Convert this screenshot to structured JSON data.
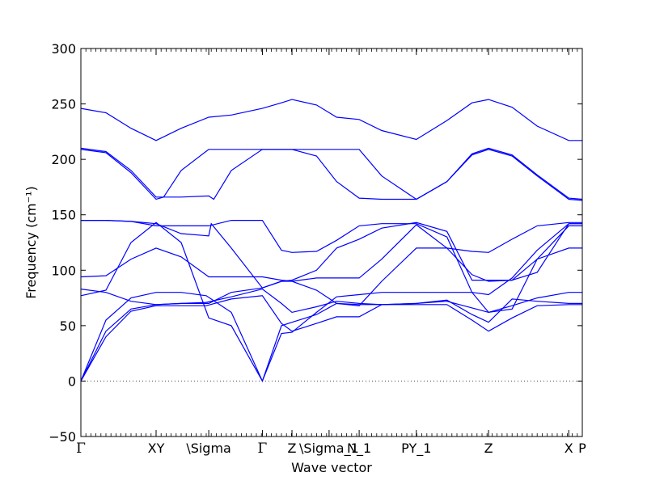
{
  "chart_data": {
    "type": "line",
    "title": "",
    "xlabel": "Wave vector",
    "ylabel": "Frequency (cm⁻¹)",
    "ylim": [
      -50,
      300
    ],
    "yticks": [
      -50,
      0,
      50,
      100,
      150,
      200,
      250,
      300
    ],
    "xlim": [
      0,
      1
    ],
    "grid": false,
    "legend": "none",
    "line_color": "#0000ff",
    "zero_line_color": "#444444",
    "high_symmetry_points": [
      {
        "label": "Γ",
        "x": 0.0,
        "greek": true
      },
      {
        "label": "XY",
        "x": 0.15,
        "greek": false
      },
      {
        "label": "\\Sigma",
        "x": 0.255,
        "greek": false
      },
      {
        "label": "Γ",
        "x": 0.362,
        "greek": true
      },
      {
        "label": "Z",
        "x": 0.421,
        "greek": false
      },
      {
        "label": "\\Sigma_1",
        "x": 0.495,
        "greek": false
      },
      {
        "label": "N_1",
        "x": 0.555,
        "greek": false
      },
      {
        "label": "PY_1",
        "x": 0.669,
        "greek": false
      },
      {
        "label": "Z",
        "x": 0.813,
        "greek": false
      },
      {
        "label": "X",
        "x": 0.973,
        "greek": false
      },
      {
        "label": "P",
        "x": 1.0,
        "greek": false
      }
    ],
    "series": [
      {
        "values": [
          [
            0,
            0
          ],
          [
            0.05,
            40
          ],
          [
            0.1,
            63
          ],
          [
            0.15,
            68
          ],
          [
            0.2,
            68
          ],
          [
            0.25,
            68
          ],
          [
            0.3,
            74
          ],
          [
            0.362,
            77
          ],
          [
            0.4,
            52
          ],
          [
            0.421,
            45
          ],
          [
            0.47,
            52
          ],
          [
            0.51,
            58
          ],
          [
            0.555,
            58
          ],
          [
            0.6,
            69
          ],
          [
            0.669,
            69
          ],
          [
            0.73,
            69
          ],
          [
            0.78,
            55
          ],
          [
            0.813,
            45
          ],
          [
            0.86,
            57
          ],
          [
            0.91,
            68
          ],
          [
            0.973,
            69
          ],
          [
            1.0,
            69
          ]
        ]
      },
      {
        "values": [
          [
            0,
            0
          ],
          [
            0.05,
            45
          ],
          [
            0.1,
            65
          ],
          [
            0.15,
            69
          ],
          [
            0.2,
            70
          ],
          [
            0.25,
            71
          ],
          [
            0.3,
            76
          ],
          [
            0.362,
            83
          ],
          [
            0.4,
            70
          ],
          [
            0.421,
            62
          ],
          [
            0.47,
            67
          ],
          [
            0.51,
            72
          ],
          [
            0.555,
            70
          ],
          [
            0.6,
            69
          ],
          [
            0.669,
            70
          ],
          [
            0.73,
            73
          ],
          [
            0.78,
            60
          ],
          [
            0.813,
            53
          ],
          [
            0.86,
            74
          ],
          [
            0.91,
            72
          ],
          [
            0.973,
            70
          ],
          [
            1.0,
            70
          ]
        ]
      },
      {
        "values": [
          [
            0,
            0
          ],
          [
            0.05,
            55
          ],
          [
            0.1,
            75
          ],
          [
            0.15,
            80
          ],
          [
            0.2,
            80
          ],
          [
            0.25,
            77
          ],
          [
            0.3,
            62
          ],
          [
            0.362,
            0
          ],
          [
            0.4,
            50
          ],
          [
            0.421,
            53
          ],
          [
            0.47,
            60
          ],
          [
            0.51,
            70
          ],
          [
            0.555,
            69
          ],
          [
            0.6,
            69
          ],
          [
            0.669,
            70
          ],
          [
            0.73,
            72
          ],
          [
            0.78,
            66
          ],
          [
            0.813,
            62
          ],
          [
            0.86,
            68
          ],
          [
            0.91,
            75
          ],
          [
            0.973,
            80
          ],
          [
            1.0,
            80
          ]
        ]
      },
      {
        "values": [
          [
            0,
            77
          ],
          [
            0.05,
            82
          ],
          [
            0.1,
            125
          ],
          [
            0.15,
            143
          ],
          [
            0.2,
            125
          ],
          [
            0.255,
            57
          ],
          [
            0.3,
            50
          ],
          [
            0.362,
            0
          ],
          [
            0.4,
            43
          ],
          [
            0.421,
            44
          ],
          [
            0.47,
            62
          ],
          [
            0.51,
            76
          ],
          [
            0.555,
            78
          ],
          [
            0.6,
            80
          ],
          [
            0.669,
            80
          ],
          [
            0.73,
            80
          ],
          [
            0.78,
            80
          ],
          [
            0.813,
            78
          ],
          [
            0.86,
            93
          ],
          [
            0.91,
            118
          ],
          [
            0.973,
            142
          ],
          [
            1.0,
            142
          ]
        ]
      },
      {
        "values": [
          [
            0,
            83
          ],
          [
            0.05,
            80
          ],
          [
            0.1,
            72
          ],
          [
            0.15,
            69
          ],
          [
            0.2,
            70
          ],
          [
            0.255,
            70
          ],
          [
            0.3,
            80
          ],
          [
            0.362,
            84
          ],
          [
            0.4,
            90
          ],
          [
            0.421,
            90
          ],
          [
            0.47,
            93
          ],
          [
            0.51,
            93
          ],
          [
            0.555,
            93
          ],
          [
            0.6,
            110
          ],
          [
            0.669,
            141
          ],
          [
            0.73,
            120
          ],
          [
            0.78,
            96
          ],
          [
            0.813,
            90
          ],
          [
            0.86,
            91
          ],
          [
            0.91,
            110
          ],
          [
            0.973,
            120
          ],
          [
            1.0,
            120
          ]
        ]
      },
      {
        "values": [
          [
            0,
            94
          ],
          [
            0.05,
            95
          ],
          [
            0.1,
            110
          ],
          [
            0.15,
            120
          ],
          [
            0.2,
            112
          ],
          [
            0.255,
            94
          ],
          [
            0.3,
            94
          ],
          [
            0.362,
            94
          ],
          [
            0.4,
            91
          ],
          [
            0.421,
            90
          ],
          [
            0.47,
            82
          ],
          [
            0.51,
            70
          ],
          [
            0.555,
            68
          ],
          [
            0.6,
            90
          ],
          [
            0.669,
            120
          ],
          [
            0.73,
            120
          ],
          [
            0.78,
            117
          ],
          [
            0.813,
            116
          ],
          [
            0.86,
            128
          ],
          [
            0.91,
            140
          ],
          [
            0.973,
            143
          ],
          [
            1.0,
            143
          ]
        ]
      },
      {
        "values": [
          [
            0,
            145
          ],
          [
            0.05,
            145
          ],
          [
            0.1,
            144
          ],
          [
            0.15,
            142
          ],
          [
            0.2,
            133
          ],
          [
            0.255,
            131
          ],
          [
            0.26,
            142
          ],
          [
            0.3,
            120
          ],
          [
            0.362,
            84
          ],
          [
            0.4,
            90
          ],
          [
            0.421,
            91
          ],
          [
            0.47,
            100
          ],
          [
            0.51,
            120
          ],
          [
            0.555,
            128
          ],
          [
            0.6,
            138
          ],
          [
            0.669,
            143
          ],
          [
            0.73,
            135
          ],
          [
            0.78,
            91
          ],
          [
            0.813,
            91
          ],
          [
            0.86,
            91
          ],
          [
            0.91,
            98
          ],
          [
            0.973,
            142
          ],
          [
            1.0,
            142
          ]
        ]
      },
      {
        "values": [
          [
            0,
            145
          ],
          [
            0.05,
            145
          ],
          [
            0.1,
            144
          ],
          [
            0.15,
            140
          ],
          [
            0.2,
            140
          ],
          [
            0.255,
            140
          ],
          [
            0.3,
            145
          ],
          [
            0.362,
            145
          ],
          [
            0.4,
            118
          ],
          [
            0.421,
            116
          ],
          [
            0.47,
            117
          ],
          [
            0.51,
            127
          ],
          [
            0.555,
            140
          ],
          [
            0.6,
            142
          ],
          [
            0.669,
            142
          ],
          [
            0.73,
            130
          ],
          [
            0.78,
            80
          ],
          [
            0.813,
            62
          ],
          [
            0.86,
            65
          ],
          [
            0.91,
            110
          ],
          [
            0.973,
            140
          ],
          [
            1.0,
            140
          ]
        ]
      },
      {
        "values": [
          [
            0,
            209
          ],
          [
            0.05,
            206
          ],
          [
            0.1,
            188
          ],
          [
            0.15,
            164
          ],
          [
            0.165,
            166
          ],
          [
            0.2,
            166
          ],
          [
            0.255,
            167
          ],
          [
            0.265,
            164
          ],
          [
            0.3,
            190
          ],
          [
            0.362,
            209
          ],
          [
            0.4,
            209
          ],
          [
            0.421,
            209
          ],
          [
            0.47,
            203
          ],
          [
            0.51,
            180
          ],
          [
            0.555,
            165
          ],
          [
            0.6,
            164
          ],
          [
            0.669,
            164
          ],
          [
            0.73,
            180
          ],
          [
            0.78,
            204
          ],
          [
            0.813,
            209
          ],
          [
            0.86,
            203
          ],
          [
            0.91,
            185
          ],
          [
            0.973,
            164
          ],
          [
            1.0,
            163
          ]
        ]
      },
      {
        "values": [
          [
            0,
            210
          ],
          [
            0.05,
            207
          ],
          [
            0.1,
            190
          ],
          [
            0.15,
            166
          ],
          [
            0.165,
            166
          ],
          [
            0.2,
            190
          ],
          [
            0.255,
            209
          ],
          [
            0.3,
            209
          ],
          [
            0.362,
            209
          ],
          [
            0.4,
            209
          ],
          [
            0.421,
            209
          ],
          [
            0.47,
            209
          ],
          [
            0.51,
            209
          ],
          [
            0.555,
            209
          ],
          [
            0.6,
            185
          ],
          [
            0.669,
            164
          ],
          [
            0.73,
            180
          ],
          [
            0.78,
            205
          ],
          [
            0.813,
            210
          ],
          [
            0.86,
            204
          ],
          [
            0.91,
            186
          ],
          [
            0.973,
            165
          ],
          [
            1.0,
            164
          ]
        ]
      },
      {
        "values": [
          [
            0,
            246
          ],
          [
            0.05,
            242
          ],
          [
            0.1,
            228
          ],
          [
            0.15,
            217
          ],
          [
            0.2,
            228
          ],
          [
            0.255,
            238
          ],
          [
            0.3,
            240
          ],
          [
            0.362,
            246
          ],
          [
            0.4,
            251
          ],
          [
            0.421,
            254
          ],
          [
            0.47,
            249
          ],
          [
            0.51,
            238
          ],
          [
            0.555,
            236
          ],
          [
            0.6,
            226
          ],
          [
            0.669,
            218
          ],
          [
            0.73,
            235
          ],
          [
            0.78,
            251
          ],
          [
            0.813,
            254
          ],
          [
            0.86,
            247
          ],
          [
            0.91,
            230
          ],
          [
            0.973,
            217
          ],
          [
            1.0,
            217
          ]
        ]
      }
    ]
  }
}
